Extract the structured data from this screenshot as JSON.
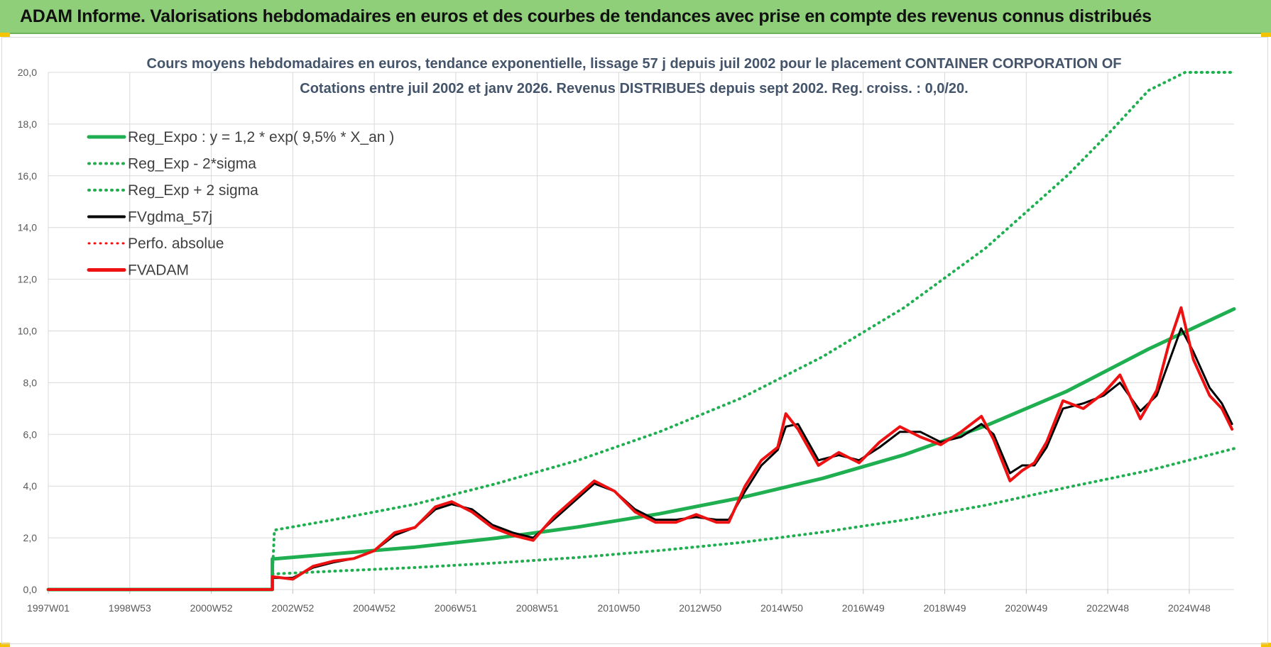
{
  "header": {
    "banner_title": "ADAM Informe. Valorisations hebdomadaires en euros et des courbes de tendances avec prise en compte des revenus connus distribués"
  },
  "colors": {
    "banner": "#8fcf7a",
    "trend_green": "#1faf50",
    "price_red": "#ee1111",
    "smooth_black": "#000000",
    "grid": "#d9d9d9"
  },
  "chart_data": {
    "type": "line",
    "title_line1": "Cours moyens hebdomadaires en euros, tendance exponentielle, lissage 57 j depuis juil 2002 pour le placement CONTAINER CORPORATION OF",
    "title_line2": "Cotations entre juil 2002 et janv 2026. Revenus DISTRIBUES depuis sept 2002. Reg. croiss. : 0,0/20.",
    "xlabel": "",
    "ylabel": "",
    "xlim": [
      1997.0,
      2026.1
    ],
    "ylim": [
      0,
      20
    ],
    "y_ticks": [
      0,
      2,
      4,
      6,
      8,
      10,
      12,
      14,
      16,
      18,
      20
    ],
    "y_tick_labels": [
      "0,0",
      "2,0",
      "4,0",
      "6,0",
      "8,0",
      "10,0",
      "12,0",
      "14,0",
      "16,0",
      "18,0",
      "20,0"
    ],
    "x_tick_labels": [
      "1997W01",
      "1998W53",
      "2000W52",
      "2002W52",
      "2004W52",
      "2006W51",
      "2008W51",
      "2010W50",
      "2012W50",
      "2014W50",
      "2016W49",
      "2018W49",
      "2020W49",
      "2022W48",
      "2024W48"
    ],
    "x_tick_positions": [
      1997.0,
      1999.0,
      2001.0,
      2003.0,
      2005.0,
      2007.0,
      2009.0,
      2011.0,
      2013.0,
      2015.0,
      2017.0,
      2019.0,
      2021.0,
      2023.0,
      2025.0
    ],
    "legend": [
      "Reg_Expo : y = 1,2 * exp( 9,5% *  X_an )",
      "Reg_Exp - 2*sigma",
      "Reg_Exp + 2 sigma",
      "FVgdma_57j",
      "Perfo. absolue",
      "FVADAM"
    ],
    "legend_position": "top-left",
    "series": [
      {
        "name": "Reg_Expo",
        "style": "solid",
        "color": "#1faf50",
        "x": [
          1997.0,
          2002.5,
          2002.5,
          2004,
          2006,
          2008,
          2010,
          2012,
          2014,
          2016,
          2018,
          2020,
          2022,
          2024,
          2026.1
        ],
        "y": [
          0,
          0,
          1.18,
          1.38,
          1.64,
          1.99,
          2.42,
          2.93,
          3.55,
          4.3,
          5.21,
          6.33,
          7.67,
          9.3,
          10.85
        ]
      },
      {
        "name": "Reg_Exp - 2*sigma",
        "style": "dotted",
        "color": "#1faf50",
        "x": [
          2002.5,
          2004,
          2006,
          2008,
          2010,
          2012,
          2014,
          2016,
          2018,
          2020,
          2022,
          2024,
          2026.1
        ],
        "y": [
          0.6,
          0.71,
          0.85,
          1.03,
          1.24,
          1.51,
          1.82,
          2.22,
          2.69,
          3.26,
          3.95,
          4.6,
          5.45
        ]
      },
      {
        "name": "Reg_Exp + 2 sigma",
        "style": "dotted",
        "color": "#1faf50",
        "x": [
          2002.5,
          2002.55,
          2004,
          2006,
          2008,
          2010,
          2012,
          2014,
          2016,
          2018,
          2020,
          2022,
          2023,
          2024,
          2024.9,
          2026.1
        ],
        "y": [
          0.6,
          2.3,
          2.7,
          3.3,
          4.1,
          5.0,
          6.1,
          7.4,
          9.0,
          10.9,
          13.2,
          16.0,
          17.6,
          19.3,
          20.0,
          20.0
        ]
      },
      {
        "name": "FVgdma_57j",
        "style": "solid",
        "color": "#000000",
        "x": [
          2002.5,
          2003,
          2003.5,
          2004,
          2004.5,
          2005,
          2005.5,
          2006,
          2006.5,
          2006.9,
          2007.4,
          2007.9,
          2008.4,
          2008.9,
          2009.4,
          2009.9,
          2010.4,
          2010.9,
          2011.4,
          2011.9,
          2012.4,
          2012.9,
          2013.4,
          2013.7,
          2014.1,
          2014.5,
          2014.9,
          2015.1,
          2015.4,
          2015.9,
          2016.4,
          2016.9,
          2017.4,
          2017.9,
          2018.4,
          2018.9,
          2019.4,
          2019.9,
          2020.2,
          2020.6,
          2020.9,
          2021.2,
          2021.5,
          2021.9,
          2022.4,
          2022.9,
          2023.3,
          2023.8,
          2024.2,
          2024.5,
          2024.8,
          2025.1,
          2025.5,
          2025.8,
          2026.05
        ],
        "y": [
          0.45,
          0.45,
          0.85,
          1.05,
          1.2,
          1.5,
          2.1,
          2.4,
          3.1,
          3.3,
          3.1,
          2.5,
          2.2,
          2.0,
          2.7,
          3.4,
          4.1,
          3.8,
          3.1,
          2.7,
          2.7,
          2.8,
          2.7,
          2.7,
          3.8,
          4.8,
          5.4,
          6.3,
          6.4,
          5.0,
          5.2,
          5.0,
          5.5,
          6.1,
          6.1,
          5.7,
          5.9,
          6.4,
          6.0,
          4.5,
          4.8,
          4.8,
          5.5,
          7.0,
          7.2,
          7.5,
          8.0,
          6.9,
          7.5,
          8.8,
          10.1,
          9.2,
          7.8,
          7.2,
          6.4
        ]
      },
      {
        "name": "Perfo. absolue",
        "style": "dotted",
        "color": "#ee1111",
        "x": [],
        "y": []
      },
      {
        "name": "FVADAM",
        "style": "solid",
        "color": "#ee1111",
        "x": [
          1997.0,
          2002.5,
          2002.5,
          2003,
          2003.5,
          2004,
          2004.5,
          2005,
          2005.5,
          2006,
          2006.5,
          2006.9,
          2007.4,
          2007.9,
          2008.4,
          2008.9,
          2009.4,
          2009.9,
          2010.4,
          2010.9,
          2011.4,
          2011.9,
          2012.4,
          2012.9,
          2013.4,
          2013.7,
          2014.1,
          2014.5,
          2014.9,
          2015.1,
          2015.4,
          2015.9,
          2016.4,
          2016.9,
          2017.4,
          2017.9,
          2018.4,
          2018.9,
          2019.4,
          2019.9,
          2020.2,
          2020.6,
          2020.9,
          2021.2,
          2021.5,
          2021.9,
          2022.4,
          2022.9,
          2023.3,
          2023.8,
          2024.2,
          2024.5,
          2024.8,
          2025.1,
          2025.5,
          2025.8,
          2026.05
        ],
        "y": [
          0.0,
          0.0,
          0.5,
          0.4,
          0.9,
          1.1,
          1.2,
          1.5,
          2.2,
          2.4,
          3.2,
          3.4,
          3.0,
          2.4,
          2.1,
          1.9,
          2.8,
          3.5,
          4.2,
          3.8,
          3.0,
          2.6,
          2.6,
          2.9,
          2.6,
          2.6,
          4.0,
          5.0,
          5.5,
          6.8,
          6.2,
          4.8,
          5.3,
          4.9,
          5.7,
          6.3,
          5.9,
          5.6,
          6.1,
          6.7,
          5.8,
          4.2,
          4.6,
          4.9,
          5.7,
          7.3,
          7.0,
          7.6,
          8.3,
          6.6,
          7.7,
          9.5,
          10.9,
          8.9,
          7.5,
          7.0,
          6.2
        ]
      }
    ]
  }
}
